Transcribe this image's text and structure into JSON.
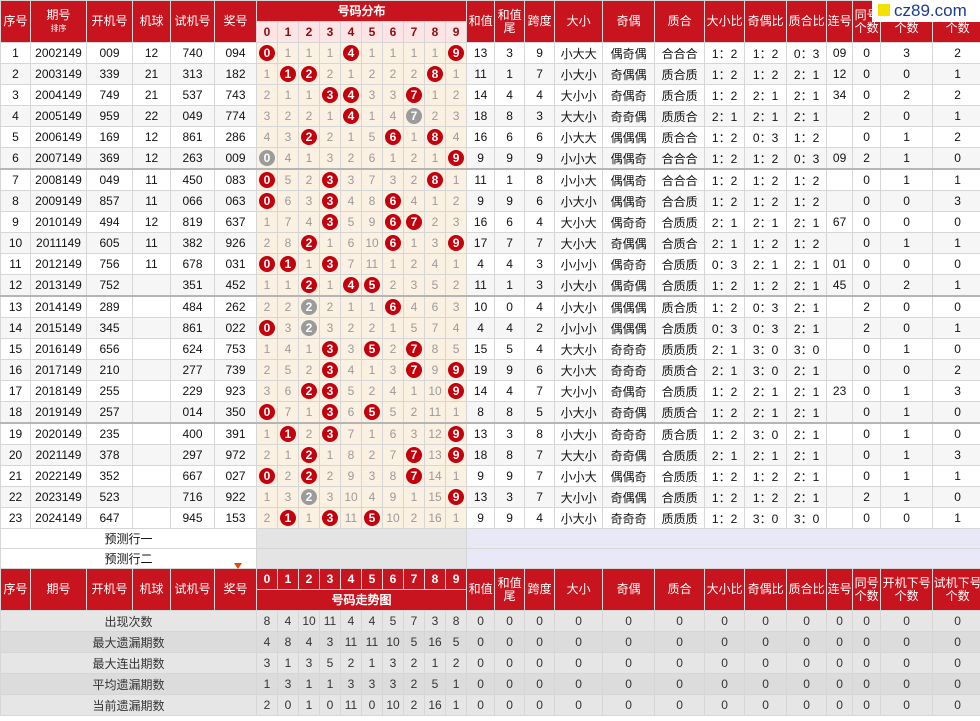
{
  "logo": "cz89.com",
  "header": {
    "columns": [
      "序号",
      "期号",
      "开机号",
      "机球",
      "试机号",
      "奖号",
      "和值",
      "和值尾",
      "跨度",
      "大小",
      "奇偶",
      "质合",
      "大小比",
      "奇偶比",
      "质合比",
      "连号",
      "同号个数",
      "开机下号个数",
      "试机下号个数"
    ],
    "sort_label": "排序",
    "distribution_title": "号码分布",
    "trend_title": "号码走势图",
    "digits": [
      "0",
      "1",
      "2",
      "3",
      "4",
      "5",
      "6",
      "7",
      "8",
      "9"
    ]
  },
  "rows": [
    [
      1,
      "2002149",
      "009",
      "12",
      "740",
      "094",
      [
        "0",
        1,
        1,
        1,
        "4",
        1,
        1,
        1,
        1,
        "9"
      ],
      13,
      3,
      9,
      "小大大",
      "偶奇偶",
      "合合合",
      "1：2",
      "1：2",
      "0：3",
      "09",
      0,
      3,
      2
    ],
    [
      2,
      "2003149",
      "339",
      "21",
      "313",
      "182",
      [
        1,
        "1",
        "2",
        2,
        1,
        2,
        2,
        2,
        "8",
        1
      ],
      11,
      1,
      7,
      "小大小",
      "奇偶偶",
      "质合质",
      "1：2",
      "1：2",
      "2：1",
      "12",
      0,
      0,
      1
    ],
    [
      3,
      "2004149",
      "749",
      "21",
      "537",
      "743",
      [
        2,
        1,
        1,
        "3",
        "4",
        3,
        3,
        "7",
        1,
        2
      ],
      14,
      4,
      4,
      "大小小",
      "奇偶奇",
      "质合质",
      "1：2",
      "2：1",
      "2：1",
      "34",
      0,
      2,
      2
    ],
    [
      4,
      "2005149",
      "959",
      "22",
      "049",
      "774",
      [
        3,
        2,
        2,
        1,
        "4",
        1,
        4,
        "7",
        2,
        3
      ],
      18,
      8,
      3,
      "大大小",
      "奇奇偶",
      "质质合",
      "2：1",
      "2：1",
      "2：1",
      null,
      2,
      0,
      1
    ],
    [
      5,
      "2006149",
      "169",
      "12",
      "861",
      "286",
      [
        4,
        3,
        "2",
        2,
        1,
        5,
        "6",
        1,
        "8",
        4
      ],
      16,
      6,
      6,
      "小大大",
      "偶偶偶",
      "质合合",
      "1：2",
      "0：3",
      "1：2",
      null,
      0,
      1,
      2
    ],
    [
      6,
      "2007149",
      "369",
      "12",
      "263",
      "009",
      [
        "0",
        4,
        1,
        3,
        2,
        6,
        1,
        2,
        1,
        "9"
      ],
      9,
      9,
      9,
      "小小大",
      "偶偶奇",
      "合合合",
      "1：2",
      "1：2",
      "0：3",
      "09",
      2,
      1,
      0
    ],
    [
      7,
      "2008149",
      "049",
      "11",
      "450",
      "083",
      [
        "0",
        5,
        2,
        "3",
        3,
        7,
        3,
        2,
        "8",
        1
      ],
      11,
      1,
      8,
      "小小大",
      "偶偶奇",
      "合合合",
      "1：2",
      "1：2",
      "1：2",
      null,
      0,
      1,
      1
    ],
    [
      8,
      "2009149",
      "857",
      "11",
      "066",
      "063",
      [
        "0",
        6,
        3,
        "3",
        4,
        8,
        "6",
        4,
        1,
        2
      ],
      9,
      9,
      6,
      "小大小",
      "偶偶奇",
      "合合质",
      "1：2",
      "1：2",
      "1：2",
      null,
      0,
      0,
      3
    ],
    [
      9,
      "2010149",
      "494",
      "12",
      "819",
      "637",
      [
        1,
        7,
        4,
        "3",
        5,
        9,
        "6",
        "7",
        2,
        3
      ],
      16,
      6,
      4,
      "大小大",
      "偶奇奇",
      "合质质",
      "2：1",
      "2：1",
      "2：1",
      "67",
      0,
      0,
      0
    ],
    [
      10,
      "2011149",
      "605",
      "11",
      "382",
      "926",
      [
        2,
        8,
        "2",
        1,
        6,
        10,
        "6",
        1,
        3,
        "9"
      ],
      17,
      7,
      7,
      "大小大",
      "奇偶偶",
      "合质合",
      "2：1",
      "1：2",
      "1：2",
      null,
      0,
      1,
      1
    ],
    [
      11,
      "2012149",
      "756",
      "11",
      "678",
      "031",
      [
        "0",
        "1",
        1,
        "3",
        7,
        11,
        1,
        2,
        4,
        1
      ],
      4,
      4,
      3,
      "小小小",
      "偶奇奇",
      "合质质",
      "0：3",
      "2：1",
      "2：1",
      "01",
      0,
      0,
      0
    ],
    [
      12,
      "2013149",
      "752",
      null,
      "351",
      "452",
      [
        1,
        1,
        "2",
        1,
        "4",
        "5",
        2,
        3,
        5,
        2
      ],
      11,
      1,
      3,
      "小大小",
      "偶奇偶",
      "合质质",
      "1：2",
      "1：2",
      "2：1",
      "45",
      0,
      2,
      1
    ],
    [
      13,
      "2014149",
      "289",
      null,
      "484",
      "262",
      [
        2,
        2,
        "2",
        2,
        1,
        1,
        "6",
        4,
        6,
        3
      ],
      10,
      0,
      4,
      "小大小",
      "偶偶偶",
      "质合质",
      "1：2",
      "0：3",
      "2：1",
      null,
      2,
      0,
      0
    ],
    [
      14,
      "2015149",
      "345",
      null,
      "861",
      "022",
      [
        "0",
        3,
        "2",
        3,
        2,
        2,
        1,
        5,
        7,
        4
      ],
      4,
      4,
      2,
      "小小小",
      "偶偶偶",
      "合质质",
      "0：3",
      "0：3",
      "2：1",
      null,
      2,
      0,
      1
    ],
    [
      15,
      "2016149",
      "656",
      null,
      "624",
      "753",
      [
        1,
        4,
        1,
        "3",
        3,
        "5",
        2,
        "7",
        8,
        5
      ],
      15,
      5,
      4,
      "大大小",
      "奇奇奇",
      "质质质",
      "2：1",
      "3：0",
      "3：0",
      null,
      0,
      1,
      0
    ],
    [
      16,
      "2017149",
      "210",
      null,
      "277",
      "739",
      [
        2,
        5,
        2,
        "3",
        4,
        1,
        3,
        "7",
        9,
        "9"
      ],
      19,
      9,
      6,
      "大小大",
      "奇奇奇",
      "质质合",
      "2：1",
      "3：0",
      "2：1",
      null,
      0,
      0,
      2
    ],
    [
      17,
      "2018149",
      "255",
      null,
      "229",
      "923",
      [
        3,
        6,
        "2",
        "3",
        5,
        2,
        4,
        1,
        10,
        "9"
      ],
      14,
      4,
      7,
      "大小小",
      "奇偶奇",
      "合质质",
      "1：2",
      "2：1",
      "2：1",
      "23",
      0,
      1,
      3
    ],
    [
      18,
      "2019149",
      "257",
      null,
      "014",
      "350",
      [
        "0",
        7,
        1,
        "3",
        6,
        "5",
        5,
        2,
        11,
        1
      ],
      8,
      8,
      5,
      "小大小",
      "奇奇偶",
      "质质合",
      "1：2",
      "2：1",
      "2：1",
      null,
      0,
      1,
      0
    ],
    [
      19,
      "2020149",
      "235",
      null,
      "400",
      "391",
      [
        1,
        "1",
        2,
        "3",
        7,
        1,
        6,
        3,
        12,
        "9"
      ],
      13,
      3,
      8,
      "小大小",
      "奇奇奇",
      "质合质",
      "1：2",
      "3：0",
      "2：1",
      null,
      0,
      1,
      0
    ],
    [
      20,
      "2021149",
      "378",
      null,
      "297",
      "972",
      [
        2,
        1,
        "2",
        1,
        8,
        2,
        7,
        "7",
        13,
        "9"
      ],
      18,
      8,
      7,
      "大大小",
      "奇奇偶",
      "合质质",
      "2：1",
      "2：1",
      "2：1",
      null,
      0,
      1,
      3
    ],
    [
      21,
      "2022149",
      "352",
      null,
      "667",
      "027",
      [
        "0",
        2,
        "2",
        2,
        9,
        3,
        8,
        "7",
        14,
        1
      ],
      9,
      9,
      7,
      "小小大",
      "偶偶奇",
      "合质质",
      "1：2",
      "1：2",
      "2：1",
      null,
      0,
      1,
      1
    ],
    [
      22,
      "2023149",
      "523",
      null,
      "716",
      "922",
      [
        1,
        3,
        "2",
        3,
        10,
        4,
        9,
        1,
        15,
        "9"
      ],
      13,
      3,
      7,
      "大小小",
      "奇偶偶",
      "合质质",
      "1：2",
      "1：2",
      "2：1",
      null,
      2,
      1,
      0
    ],
    [
      23,
      "2024149",
      "647",
      null,
      "945",
      "153",
      [
        2,
        "1",
        1,
        "3",
        11,
        "5",
        10,
        2,
        16,
        1
      ],
      9,
      9,
      4,
      "小大小",
      "奇奇奇",
      "质质质",
      "1：2",
      "3：0",
      "3：0",
      null,
      0,
      0,
      1
    ]
  ],
  "predictions": [
    "预测行一",
    "预测行二"
  ],
  "stats": [
    {
      "label": "出现次数",
      "digits": [
        8,
        4,
        10,
        11,
        4,
        4,
        5,
        7,
        3,
        8
      ],
      "others": [
        0,
        0,
        0,
        0,
        0,
        0,
        0,
        0,
        0,
        0,
        0,
        0,
        0
      ]
    },
    {
      "label": "最大遗漏期数",
      "digits": [
        4,
        8,
        4,
        3,
        11,
        11,
        10,
        5,
        16,
        5
      ],
      "others": [
        0,
        0,
        0,
        0,
        0,
        0,
        0,
        0,
        0,
        0,
        0,
        0,
        0
      ]
    },
    {
      "label": "最大连出期数",
      "digits": [
        3,
        1,
        3,
        5,
        2,
        1,
        3,
        2,
        1,
        2
      ],
      "others": [
        0,
        0,
        0,
        0,
        0,
        0,
        0,
        0,
        0,
        0,
        0,
        0,
        0
      ]
    },
    {
      "label": "平均遗漏期数",
      "digits": [
        1,
        3,
        1,
        1,
        3,
        3,
        3,
        2,
        5,
        1
      ],
      "others": [
        0,
        0,
        0,
        0,
        0,
        0,
        0,
        0,
        0,
        0,
        0,
        0,
        0
      ]
    },
    {
      "label": "当前遗漏期数",
      "digits": [
        2,
        0,
        1,
        0,
        11,
        0,
        10,
        2,
        16,
        1
      ],
      "others": [
        0,
        0,
        0,
        0,
        0,
        0,
        0,
        0,
        0,
        0,
        0,
        0,
        0
      ]
    }
  ]
}
